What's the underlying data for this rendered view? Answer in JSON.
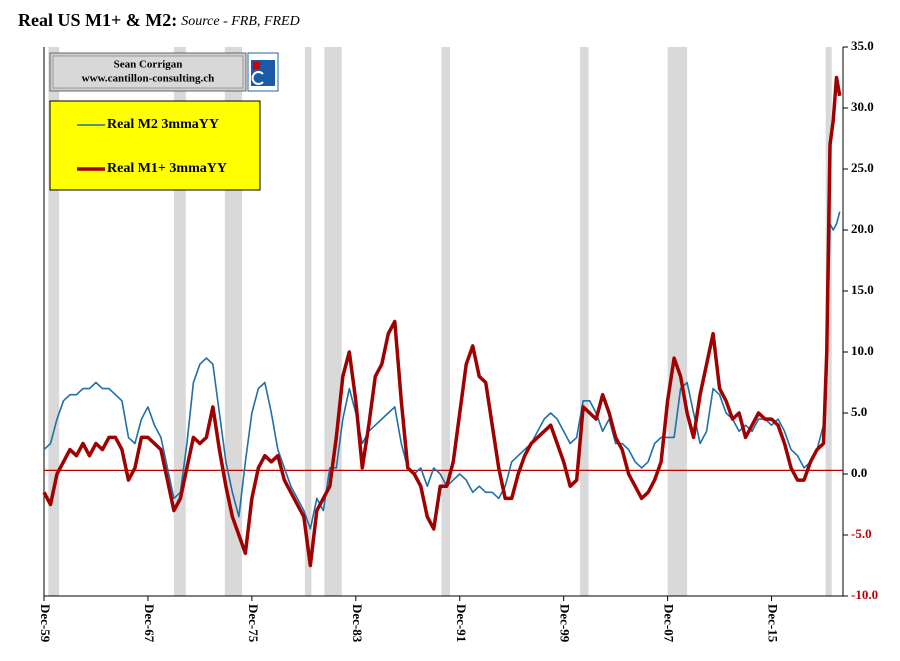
{
  "chart_data": {
    "type": "line",
    "title": "Real US M1+ & M2:",
    "subtitle": "Source - FRB, FRED",
    "credit": [
      "Sean Corrigan",
      "www.cantillon-consulting.ch"
    ],
    "y_axis_side": "right",
    "ylim": [
      -10,
      35
    ],
    "yticks": [
      {
        "value": -10,
        "label": "-10.0"
      },
      {
        "value": -5,
        "label": "-5.0"
      },
      {
        "value": 0,
        "label": "0.0"
      },
      {
        "value": 5,
        "label": "5.0"
      },
      {
        "value": 10,
        "label": "10.0"
      },
      {
        "value": 15,
        "label": "15.0"
      },
      {
        "value": 20,
        "label": "20.0"
      },
      {
        "value": 25,
        "label": "25.0"
      },
      {
        "value": 30,
        "label": "30.0"
      },
      {
        "value": 35,
        "label": "35.0"
      }
    ],
    "negative_tick_color": "#c00000",
    "xlim": [
      "Dec-59",
      "Jun-21"
    ],
    "xticks": [
      "Dec-59",
      "Dec-67",
      "Dec-75",
      "Dec-83",
      "Dec-91",
      "Dec-99",
      "Dec-07",
      "Dec-15"
    ],
    "reference_line": {
      "value": 0.3,
      "color": "#c00000"
    },
    "recessions": [
      [
        "Apr-60",
        "Feb-61"
      ],
      [
        "Dec-69",
        "Nov-70"
      ],
      [
        "Nov-73",
        "Mar-75"
      ],
      [
        "Jan-80",
        "Jul-80"
      ],
      [
        "Jul-81",
        "Nov-82"
      ],
      [
        "Jul-90",
        "Mar-91"
      ],
      [
        "Mar-01",
        "Nov-01"
      ],
      [
        "Dec-07",
        "Jun-09"
      ],
      [
        "Feb-20",
        "Apr-20"
      ]
    ],
    "recession_color": "#d9d9d9",
    "legend_position": "upper left",
    "legend_color": "#ffff00",
    "x": [
      "Dec-59",
      "Jun-60",
      "Dec-60",
      "Jun-61",
      "Dec-61",
      "Jun-62",
      "Dec-62",
      "Jun-63",
      "Dec-63",
      "Jun-64",
      "Dec-64",
      "Jun-65",
      "Dec-65",
      "Jun-66",
      "Dec-66",
      "Jun-67",
      "Dec-67",
      "Jun-68",
      "Dec-68",
      "Jun-69",
      "Dec-69",
      "Jun-70",
      "Dec-70",
      "Jun-71",
      "Dec-71",
      "Jun-72",
      "Dec-72",
      "Jun-73",
      "Dec-73",
      "Jun-74",
      "Dec-74",
      "Jun-75",
      "Dec-75",
      "Jun-76",
      "Dec-76",
      "Jun-77",
      "Dec-77",
      "Jun-78",
      "Dec-78",
      "Jun-79",
      "Dec-79",
      "Jun-80",
      "Dec-80",
      "Jun-81",
      "Dec-81",
      "Jun-82",
      "Dec-82",
      "Jun-83",
      "Dec-83",
      "Jun-84",
      "Dec-84",
      "Jun-85",
      "Dec-85",
      "Jun-86",
      "Dec-86",
      "Jun-87",
      "Dec-87",
      "Jun-88",
      "Dec-88",
      "Jun-89",
      "Dec-89",
      "Jun-90",
      "Dec-90",
      "Jun-91",
      "Dec-91",
      "Jun-92",
      "Dec-92",
      "Jun-93",
      "Dec-93",
      "Jun-94",
      "Dec-94",
      "Jun-95",
      "Dec-95",
      "Jun-96",
      "Dec-96",
      "Jun-97",
      "Dec-97",
      "Jun-98",
      "Dec-98",
      "Jun-99",
      "Dec-99",
      "Jun-00",
      "Dec-00",
      "Jun-01",
      "Dec-01",
      "Jun-02",
      "Dec-02",
      "Jun-03",
      "Dec-03",
      "Jun-04",
      "Dec-04",
      "Jun-05",
      "Dec-05",
      "Jun-06",
      "Dec-06",
      "Jun-07",
      "Dec-07",
      "Jun-08",
      "Dec-08",
      "Jun-09",
      "Dec-09",
      "Jun-10",
      "Dec-10",
      "Jun-11",
      "Dec-11",
      "Jun-12",
      "Dec-12",
      "Jun-13",
      "Dec-13",
      "Jun-14",
      "Dec-14",
      "Jun-15",
      "Dec-15",
      "Jun-16",
      "Dec-16",
      "Jun-17",
      "Dec-17",
      "Jun-18",
      "Dec-18",
      "Jun-19",
      "Dec-19",
      "Mar-20",
      "Jun-20",
      "Sep-20",
      "Dec-20",
      "Mar-21"
    ],
    "series": [
      {
        "name": "Real M2 3mmaYY",
        "color": "#1f6fa8",
        "width": 1.6,
        "values": [
          2.0,
          2.5,
          4.5,
          6.0,
          6.5,
          6.5,
          7.0,
          7.0,
          7.5,
          7.0,
          7.0,
          6.5,
          6.0,
          3.0,
          2.5,
          4.5,
          5.5,
          4.0,
          3.0,
          0.5,
          -2.0,
          -1.5,
          2.5,
          7.5,
          9.0,
          9.5,
          9.0,
          5.0,
          1.0,
          -1.5,
          -3.5,
          1.0,
          5.0,
          7.0,
          7.5,
          5.0,
          2.0,
          0.5,
          -1.0,
          -2.0,
          -3.0,
          -4.5,
          -2.0,
          -3.0,
          0.5,
          0.5,
          4.5,
          7.0,
          5.0,
          2.5,
          3.5,
          4.0,
          4.5,
          5.0,
          5.5,
          2.5,
          0.5,
          0.0,
          0.5,
          -1.0,
          0.5,
          0.0,
          -1.0,
          -0.5,
          0.0,
          -0.5,
          -1.5,
          -1.0,
          -1.5,
          -1.5,
          -2.0,
          -1.0,
          1.0,
          1.5,
          2.0,
          2.5,
          3.5,
          4.5,
          5.0,
          4.5,
          3.5,
          2.5,
          3.0,
          6.0,
          6.0,
          5.0,
          3.5,
          4.5,
          2.5,
          2.5,
          2.0,
          1.0,
          0.5,
          1.0,
          2.5,
          3.0,
          3.0,
          3.0,
          7.0,
          7.5,
          5.0,
          2.5,
          3.5,
          7.0,
          6.5,
          5.0,
          4.5,
          3.5,
          4.0,
          3.5,
          4.5,
          4.5,
          4.0,
          4.5,
          3.5,
          2.0,
          1.5,
          0.5,
          1.0,
          2.0,
          4.0,
          8.0,
          20.5,
          20.0,
          20.5,
          21.5
        ]
      },
      {
        "name": "Real M1+ 3mmaYY",
        "color": "#a00000",
        "width": 3.5,
        "values": [
          -1.5,
          -2.5,
          0.0,
          1.0,
          2.0,
          1.5,
          2.5,
          1.5,
          2.5,
          2.0,
          3.0,
          3.0,
          2.0,
          -0.5,
          0.5,
          3.0,
          3.0,
          2.5,
          2.0,
          -0.5,
          -3.0,
          -2.0,
          0.5,
          3.0,
          2.5,
          3.0,
          5.5,
          2.0,
          -1.0,
          -3.5,
          -5.0,
          -6.5,
          -2.0,
          0.5,
          1.5,
          1.0,
          1.5,
          -0.5,
          -1.5,
          -2.5,
          -3.5,
          -7.5,
          -3.0,
          -2.0,
          -1.0,
          3.0,
          8.0,
          10.0,
          6.0,
          0.5,
          4.0,
          8.0,
          9.0,
          11.5,
          12.5,
          6.0,
          0.5,
          0.0,
          -1.0,
          -3.5,
          -4.5,
          -1.0,
          -1.0,
          1.0,
          5.0,
          9.0,
          10.5,
          8.0,
          7.5,
          4.0,
          0.5,
          -2.0,
          -2.0,
          0.0,
          1.5,
          2.5,
          3.0,
          3.5,
          4.0,
          2.5,
          1.0,
          -1.0,
          -0.5,
          5.5,
          5.0,
          4.5,
          6.5,
          5.0,
          3.0,
          2.0,
          0.0,
          -1.0,
          -2.0,
          -1.5,
          -0.5,
          1.0,
          6.0,
          9.5,
          8.0,
          5.0,
          3.0,
          6.5,
          9.0,
          11.5,
          7.0,
          6.0,
          4.5,
          5.0,
          3.0,
          4.0,
          5.0,
          4.5,
          4.5,
          4.0,
          2.5,
          0.5,
          -0.5,
          -0.5,
          1.0,
          2.0,
          2.5,
          10.0,
          27.0,
          29.0,
          32.5,
          31.0
        ]
      }
    ]
  }
}
